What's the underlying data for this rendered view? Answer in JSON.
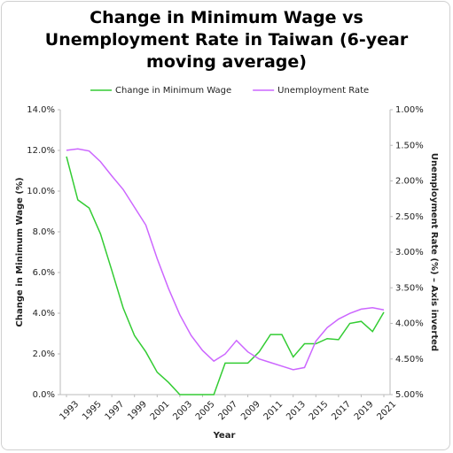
{
  "chart_data": {
    "type": "line",
    "title": "Change in Minimum Wage vs Unemployment Rate in Taiwan (6-year moving average)",
    "x_label": "Year",
    "y_label": "Change in Minimum Wage (%)",
    "y2_label": "Unemployment Rate (%) – Axis inverted",
    "x": [
      1993,
      1994,
      1995,
      1996,
      1997,
      1998,
      1999,
      2000,
      2001,
      2002,
      2003,
      2004,
      2005,
      2006,
      2007,
      2008,
      2009,
      2010,
      2011,
      2012,
      2013,
      2014,
      2015,
      2016,
      2017,
      2018,
      2019,
      2020,
      2021
    ],
    "xlim": [
      1993,
      2021
    ],
    "xticks": [
      1993,
      1995,
      1997,
      1999,
      2001,
      2003,
      2005,
      2007,
      2009,
      2011,
      2013,
      2015,
      2017,
      2019,
      2021
    ],
    "ylim": [
      0,
      14
    ],
    "yticks": [
      {
        "value": 0,
        "label": "0.0%"
      },
      {
        "value": 2,
        "label": "2.0%"
      },
      {
        "value": 4,
        "label": "4.0%"
      },
      {
        "value": 6,
        "label": "6.0%"
      },
      {
        "value": 8,
        "label": "8.0%"
      },
      {
        "value": 10,
        "label": "10.0%"
      },
      {
        "value": 12,
        "label": "12.0%"
      },
      {
        "value": 14,
        "label": "14.0%"
      }
    ],
    "y2lim": [
      5,
      1
    ],
    "y2ticks": [
      {
        "value": 1,
        "label": "1.00%"
      },
      {
        "value": 1.5,
        "label": "1.50%"
      },
      {
        "value": 2,
        "label": "2.00%"
      },
      {
        "value": 2.5,
        "label": "2.50%"
      },
      {
        "value": 3,
        "label": "3.00%"
      },
      {
        "value": 3.5,
        "label": "3.50%"
      },
      {
        "value": 4,
        "label": "4.00%"
      },
      {
        "value": 4.5,
        "label": "4.50%"
      },
      {
        "value": 5,
        "label": "5.00%"
      }
    ],
    "legend": "top",
    "series": [
      {
        "name": "Change in Minimum Wage",
        "color": "#33cc33",
        "axis": "y",
        "values": [
          11.7,
          9.57,
          9.17,
          7.9,
          6.1,
          4.26,
          2.9,
          2.1,
          1.1,
          0.6,
          0,
          0,
          0,
          0,
          1.55,
          1.55,
          1.55,
          2.1,
          2.95,
          2.95,
          1.85,
          2.5,
          2.5,
          2.75,
          2.7,
          3.5,
          3.6,
          3.1,
          4.05
        ]
      },
      {
        "name": "Unemployment Rate",
        "color": "#cc66ff",
        "axis": "y2",
        "values": [
          1.57,
          1.55,
          1.58,
          1.73,
          1.93,
          2.12,
          2.37,
          2.62,
          3.09,
          3.51,
          3.88,
          4.17,
          4.38,
          4.53,
          4.43,
          4.24,
          4.4,
          4.5,
          4.55,
          4.6,
          4.65,
          4.62,
          4.25,
          4.06,
          3.94,
          3.86,
          3.8,
          3.78,
          3.81
        ]
      }
    ]
  }
}
